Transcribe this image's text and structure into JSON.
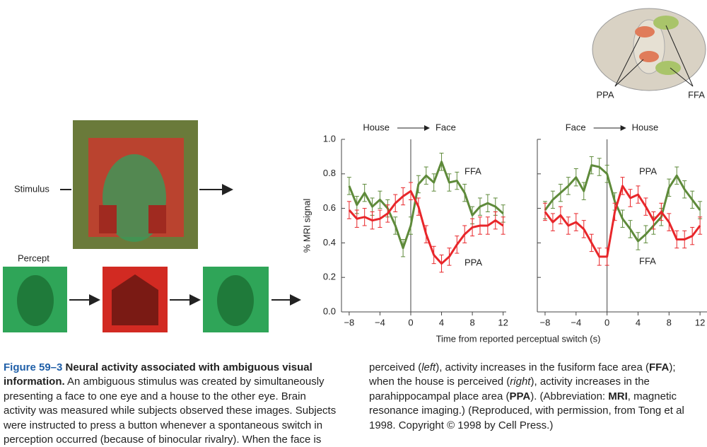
{
  "brain": {
    "labels": [
      "PPA",
      "FFA"
    ]
  },
  "stimulus": {
    "stimulus_label": "Stimulus",
    "percept_label": "Percept"
  },
  "chart_data": [
    {
      "type": "line",
      "ylabel": "% MRI signal",
      "xlabel": "Time from reported perceptual switch (s)",
      "switch": [
        "House",
        "Face"
      ],
      "switch_at": 0,
      "ytick_labels": true,
      "x": [
        -8,
        -7,
        -6,
        -5,
        -4,
        -3,
        -2,
        -1,
        0,
        1,
        2,
        3,
        4,
        5,
        6,
        7,
        8,
        9,
        10,
        11,
        12
      ],
      "xlim": [
        -9,
        12.4
      ],
      "xticks": [
        {
          "value": -8,
          "label": "−8"
        },
        {
          "value": -4,
          "label": "−4"
        },
        0,
        4,
        8,
        12
      ],
      "ylim": [
        0,
        1.0
      ],
      "yticks": [
        {
          "value": 0,
          "label": "0.0"
        },
        0.2,
        0.4,
        0.6,
        0.8,
        {
          "value": 1,
          "label": "1.0"
        }
      ],
      "series": [
        {
          "name": "FFA",
          "color": "#5e8a3a",
          "error": 0.05,
          "values": [
            0.73,
            0.62,
            0.69,
            0.61,
            0.65,
            0.6,
            0.5,
            0.37,
            0.5,
            0.74,
            0.79,
            0.75,
            0.87,
            0.75,
            0.76,
            0.69,
            0.56,
            0.61,
            0.63,
            0.61,
            0.57
          ]
        },
        {
          "name": "PPA",
          "color": "#e8262a",
          "error": 0.05,
          "values": [
            0.59,
            0.54,
            0.55,
            0.53,
            0.54,
            0.57,
            0.63,
            0.67,
            0.7,
            0.61,
            0.45,
            0.33,
            0.28,
            0.32,
            0.39,
            0.45,
            0.49,
            0.5,
            0.5,
            0.53,
            0.5
          ]
        }
      ]
    },
    {
      "type": "line",
      "switch": [
        "Face",
        "House"
      ],
      "switch_at": 0,
      "ytick_labels": false,
      "x": [
        -8,
        -7,
        -6,
        -5,
        -4,
        -3,
        -2,
        -1,
        0,
        1,
        2,
        3,
        4,
        5,
        6,
        7,
        8,
        9,
        10,
        11,
        12
      ],
      "xlim": [
        -9,
        12.9
      ],
      "xticks": [
        {
          "value": -8,
          "label": "−8"
        },
        {
          "value": -4,
          "label": "−4"
        },
        0,
        4,
        8,
        12
      ],
      "ylim": [
        0,
        1.0
      ],
      "yticks": [
        0,
        0.2,
        0.4,
        0.6,
        0.8,
        1
      ],
      "series": [
        {
          "name": "FFA",
          "color": "#5e8a3a",
          "error": 0.05,
          "values": [
            0.59,
            0.65,
            0.69,
            0.73,
            0.78,
            0.7,
            0.85,
            0.84,
            0.8,
            0.64,
            0.54,
            0.48,
            0.41,
            0.45,
            0.5,
            0.55,
            0.72,
            0.79,
            0.71,
            0.65,
            0.59
          ]
        },
        {
          "name": "PPA",
          "color": "#e8262a",
          "error": 0.05,
          "values": [
            0.58,
            0.52,
            0.56,
            0.5,
            0.52,
            0.48,
            0.4,
            0.32,
            0.32,
            0.58,
            0.73,
            0.66,
            0.68,
            0.61,
            0.53,
            0.58,
            0.52,
            0.42,
            0.42,
            0.44,
            0.5
          ]
        }
      ]
    }
  ],
  "caption": [
    {
      "text": "Figure 59–3",
      "kind": "label"
    },
    {
      "text": " Neural activity associated with ambiguous visual information.",
      "kind": "bold"
    },
    {
      "text": " An ambiguous stimulus was created by simultaneously presenting a face to one eye and a house to the other eye. Brain activity was measured while subjects observed these images. Subjects were instructed to press a button whenever a spontaneous switch in perception occurred (because of binocular rivalry). When the face is perceived (",
      "kind": "plain"
    },
    {
      "text": "left",
      "kind": "italic"
    },
    {
      "text": "), activity increases in the fusiform face area (",
      "kind": "plain"
    },
    {
      "text": "FFA",
      "kind": "bold"
    },
    {
      "text": "); when the house is perceived (",
      "kind": "plain"
    },
    {
      "text": "right",
      "kind": "italic"
    },
    {
      "text": "), activity increases in the parahippocampal place area (",
      "kind": "plain"
    },
    {
      "text": "PPA",
      "kind": "bold"
    },
    {
      "text": "). (Abbreviation: ",
      "kind": "plain"
    },
    {
      "text": "MRI",
      "kind": "bold"
    },
    {
      "text": ", magnetic resonance imaging.) (Reproduced, with permission, from Tong et al 1998. Copyright © 1998 by Cell Press.)",
      "kind": "plain"
    }
  ]
}
